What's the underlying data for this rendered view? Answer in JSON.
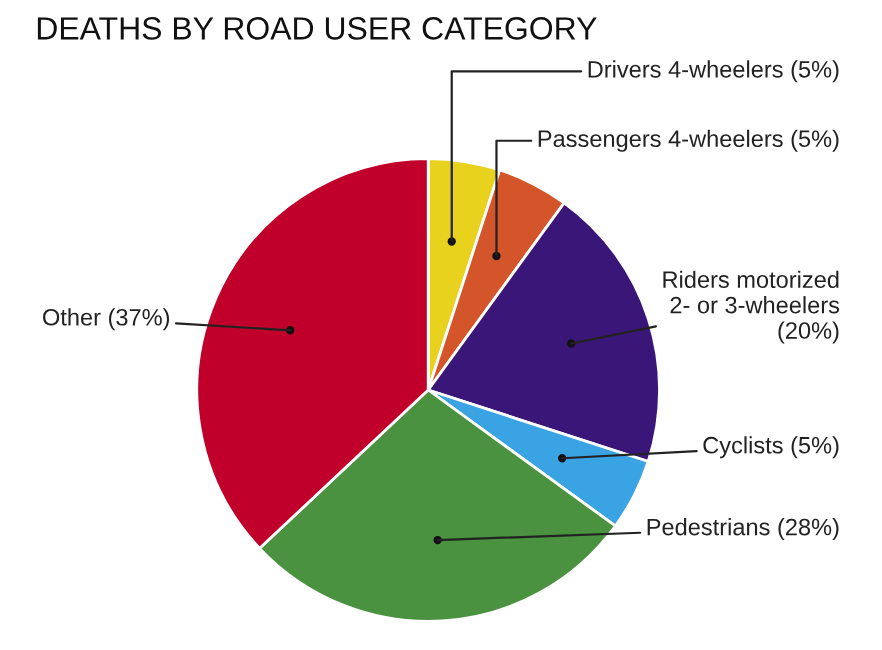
{
  "chart_data": {
    "type": "pie",
    "title": "DEATHS BY ROAD USER CATEGORY",
    "categories": [
      "Drivers 4-wheelers (5%)",
      "Passengers 4-wheelers (5%)",
      "Riders motorized\n2- or 3-wheelers\n(20%)",
      "Cyclists (5%)",
      "Pedestrians (28%)",
      "Other (37%)"
    ],
    "values": [
      5,
      5,
      20,
      5,
      28,
      37
    ],
    "colors": [
      "#e8d21e",
      "#d4552a",
      "#3b1679",
      "#3aa3e3",
      "#4a9140",
      "#c0002a"
    ]
  }
}
